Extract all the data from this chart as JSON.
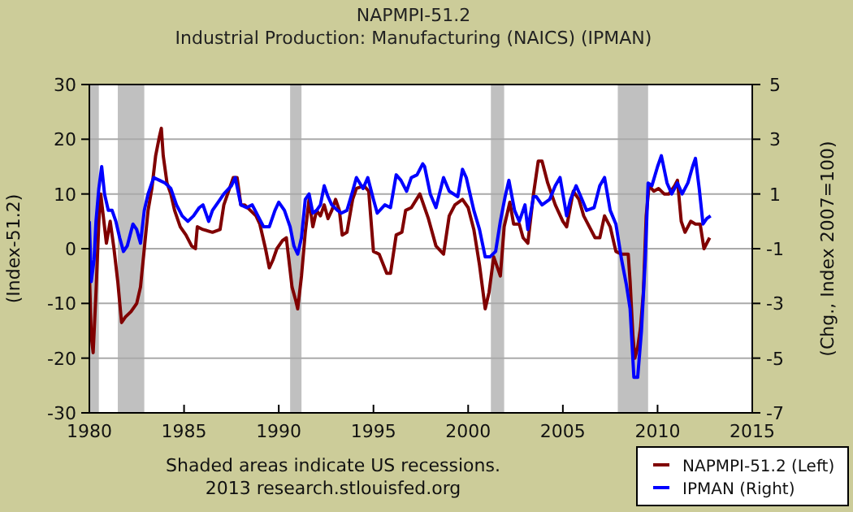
{
  "chart_data": {
    "type": "line",
    "title": "NAPMPI-51.2",
    "subtitle": "Industrial Production: Manufacturing (NAICS) (IPMAN)",
    "ylabel": "(Index-51.2)",
    "y2label": "(Chg., Index 2007=100)",
    "xlim": [
      1980,
      2015
    ],
    "xticks": [
      1980,
      1985,
      1990,
      1995,
      2000,
      2005,
      2010,
      2015
    ],
    "ylim": [
      -30,
      30
    ],
    "yticks": [
      -30,
      -20,
      -10,
      0,
      10,
      20,
      30
    ],
    "y2lim": [
      -7,
      5
    ],
    "y2ticks": [
      -7,
      -5,
      -3,
      -1,
      1,
      3,
      5
    ],
    "grid": "y",
    "legend": "bottom right",
    "line_style": "solid",
    "bands": [
      {
        "axis": "x",
        "from": 1980.0,
        "to": 1980.5,
        "color": "#c0c0c0"
      },
      {
        "axis": "x",
        "from": 1981.5,
        "to": 1982.9,
        "color": "#c0c0c0"
      },
      {
        "axis": "x",
        "from": 1990.6,
        "to": 1991.2,
        "color": "#c0c0c0"
      },
      {
        "axis": "x",
        "from": 2001.2,
        "to": 2001.9,
        "color": "#c0c0c0"
      },
      {
        "axis": "x",
        "from": 2007.9,
        "to": 2009.5,
        "color": "#c0c0c0"
      }
    ],
    "annotations": [
      "Shaded areas indicate US recessions.",
      "2013 research.stlouisfed.org"
    ],
    "series": [
      {
        "name": "NAPMPI-51.2 (Left)",
        "color": "#800000",
        "x": [
          1980.0,
          1980.1,
          1980.2,
          1980.35,
          1980.5,
          1980.6,
          1980.8,
          1980.9,
          1981.1,
          1981.3,
          1981.5,
          1981.7,
          1981.9,
          1982.2,
          1982.5,
          1982.7,
          1982.9,
          1983.1,
          1983.3,
          1983.5,
          1983.7,
          1983.8,
          1983.9,
          1984.1,
          1984.3,
          1984.5,
          1984.8,
          1985.1,
          1985.4,
          1985.6,
          1985.7,
          1986.0,
          1986.5,
          1986.9,
          1987.1,
          1987.4,
          1987.6,
          1987.8,
          1988.0,
          1988.2,
          1988.5,
          1988.8,
          1989.0,
          1989.3,
          1989.5,
          1989.7,
          1989.9,
          1990.2,
          1990.4,
          1990.5,
          1990.7,
          1990.9,
          1991.0,
          1991.2,
          1991.4,
          1991.6,
          1991.8,
          1992.0,
          1992.2,
          1992.4,
          1992.6,
          1992.8,
          1993.0,
          1993.2,
          1993.35,
          1993.6,
          1993.9,
          1994.1,
          1994.5,
          1994.75,
          1995.0,
          1995.3,
          1995.7,
          1995.9,
          1996.2,
          1996.5,
          1996.7,
          1997.0,
          1997.45,
          1997.9,
          1998.3,
          1998.7,
          1999.0,
          1999.3,
          1999.7,
          2000.0,
          2000.3,
          2000.6,
          2000.9,
          2001.1,
          2001.35,
          2001.5,
          2001.7,
          2001.9,
          2002.2,
          2002.4,
          2002.7,
          2002.9,
          2003.15,
          2003.45,
          2003.7,
          2003.9,
          2004.2,
          2004.6,
          2005.0,
          2005.2,
          2005.55,
          2005.85,
          2006.1,
          2006.25,
          2006.7,
          2006.95,
          2007.2,
          2007.5,
          2007.8,
          2008.1,
          2008.45,
          2008.55,
          2008.7,
          2008.8,
          2008.95,
          2009.1,
          2009.25,
          2009.4,
          2009.55,
          2009.8,
          2010.05,
          2010.35,
          2010.6,
          2010.9,
          2011.05,
          2011.25,
          2011.45,
          2011.75,
          2012.0,
          2012.25,
          2012.45,
          2012.6,
          2012.75
        ],
        "values": [
          -4,
          -16,
          -19,
          -8,
          5,
          10,
          4,
          1,
          5,
          0,
          -6,
          -13.5,
          -12.5,
          -11.5,
          -10,
          -7,
          0,
          7,
          11,
          17,
          20.5,
          22,
          17,
          12,
          10,
          7,
          4,
          2.5,
          0.5,
          0,
          4,
          3.5,
          3,
          3.5,
          8,
          11,
          13,
          13,
          8,
          8,
          7,
          6,
          4.5,
          0,
          -3.5,
          -2,
          0,
          1.5,
          2,
          -1,
          -7,
          -9.5,
          -11,
          -5,
          3,
          9,
          4,
          7,
          6,
          8,
          5.5,
          7,
          9,
          7,
          2.5,
          3,
          9,
          11,
          11.5,
          10.5,
          -0.5,
          -1,
          -4.5,
          -4.5,
          2.5,
          3,
          7,
          7.5,
          10,
          5.5,
          0.5,
          -1,
          6,
          8,
          9,
          7.5,
          3.5,
          -3,
          -11,
          -8,
          -1.5,
          -3,
          -5,
          4,
          8.5,
          4.5,
          4.5,
          2,
          1,
          10,
          16,
          16,
          12,
          8,
          5,
          4,
          10.5,
          9,
          6,
          5,
          2,
          2,
          6,
          4,
          -0.5,
          -1,
          -1,
          -6,
          -16,
          -20,
          -18,
          -14.5,
          -8,
          6,
          11.5,
          10.5,
          11,
          10,
          10,
          11.5,
          12.5,
          5,
          3,
          5,
          4.5,
          4.5,
          0,
          1,
          2
        ]
      },
      {
        "name": "IPMAN (Right)",
        "color": "#0000ff",
        "axis": "y2",
        "x": [
          1980.0,
          1980.1,
          1980.25,
          1980.35,
          1980.5,
          1980.65,
          1980.8,
          1981.0,
          1981.2,
          1981.4,
          1981.6,
          1981.8,
          1982.0,
          1982.3,
          1982.5,
          1982.7,
          1982.9,
          1983.1,
          1983.4,
          1983.7,
          1984.0,
          1984.3,
          1984.6,
          1984.9,
          1985.2,
          1985.5,
          1985.8,
          1986.0,
          1986.3,
          1986.5,
          1986.8,
          1987.1,
          1987.5,
          1987.7,
          1988.0,
          1988.3,
          1988.6,
          1988.9,
          1989.2,
          1989.5,
          1989.8,
          1990.0,
          1990.3,
          1990.6,
          1990.8,
          1991.0,
          1991.2,
          1991.4,
          1991.6,
          1991.8,
          1992.0,
          1992.2,
          1992.4,
          1992.6,
          1992.8,
          1993.1,
          1993.3,
          1993.6,
          1993.9,
          1994.1,
          1994.45,
          1994.7,
          1995.0,
          1995.2,
          1995.6,
          1995.9,
          1996.2,
          1996.45,
          1996.75,
          1997.0,
          1997.3,
          1997.6,
          1997.7,
          1998.0,
          1998.3,
          1998.7,
          1999.0,
          1999.45,
          1999.7,
          1999.9,
          2000.3,
          2000.6,
          2000.9,
          2001.15,
          2001.45,
          2001.7,
          2001.95,
          2002.15,
          2002.45,
          2002.7,
          2003.0,
          2003.15,
          2003.45,
          2003.6,
          2003.9,
          2004.3,
          2004.6,
          2004.85,
          2005.2,
          2005.4,
          2005.7,
          2005.95,
          2006.25,
          2006.65,
          2006.95,
          2007.2,
          2007.5,
          2007.8,
          2008.1,
          2008.35,
          2008.55,
          2008.75,
          2008.95,
          2009.15,
          2009.35,
          2009.5,
          2009.7,
          2010.0,
          2010.2,
          2010.5,
          2010.75,
          2011.05,
          2011.3,
          2011.6,
          2011.85,
          2012.0,
          2012.2,
          2012.4,
          2012.6,
          2012.8
        ],
        "values": [
          0,
          -2.2,
          -1.4,
          0,
          1.2,
          2,
          1,
          0.4,
          0.4,
          0,
          -0.6,
          -1.1,
          -0.9,
          -0.1,
          -0.3,
          -0.8,
          0.4,
          1,
          1.6,
          1.5,
          1.4,
          1.2,
          0.6,
          0.2,
          0,
          0.2,
          0.5,
          0.6,
          0,
          0.4,
          0.7,
          1,
          1.3,
          1.6,
          0.6,
          0.5,
          0.6,
          0.2,
          -0.2,
          -0.2,
          0.4,
          0.7,
          0.4,
          -0.2,
          -0.9,
          -1.2,
          -0.6,
          0.8,
          1,
          0.3,
          0.4,
          0.6,
          1.3,
          0.9,
          0.6,
          0.4,
          0.3,
          0.4,
          1.1,
          1.6,
          1.2,
          1.6,
          0.8,
          0.3,
          0.6,
          0.5,
          1.7,
          1.5,
          1.1,
          1.6,
          1.7,
          2.1,
          2,
          1,
          0.5,
          1.6,
          1.1,
          0.9,
          1.9,
          1.6,
          0.4,
          -0.3,
          -1.3,
          -1.3,
          -1.1,
          0,
          0.9,
          1.5,
          0.4,
          0,
          0.6,
          -0.3,
          0.9,
          0.9,
          0.6,
          0.8,
          1.3,
          1.6,
          0.2,
          0.8,
          1.3,
          0.9,
          0.4,
          0.5,
          1.3,
          1.6,
          0.4,
          -0.1,
          -1.4,
          -2.3,
          -3.2,
          -5.7,
          -5.7,
          -4,
          -1.4,
          1.4,
          1.3,
          2,
          2.4,
          1.4,
          1,
          1.4,
          1,
          1.4,
          2,
          2.3,
          1.2,
          -0.1,
          0.1,
          0.2
        ]
      }
    ]
  }
}
